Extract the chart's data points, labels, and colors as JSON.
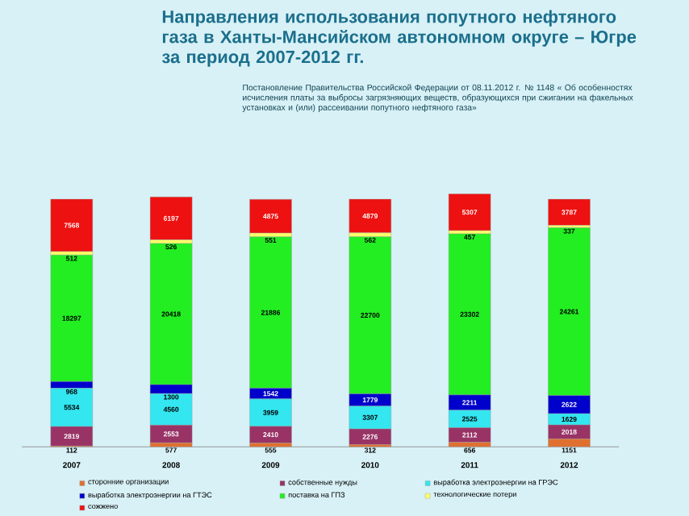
{
  "chart_data": {
    "type": "bar",
    "stacked": true,
    "data_labels": true,
    "legend": "bottom",
    "title": "Направления использования попутного нефтяного газа в Ханты-Мансийском автономном округе – Югре за период 2007-2012 гг.",
    "subtitle": "Постановление Правительства Российской Федерации от 08.11.2012 г. № 1148 « Об особенностях исчисления платы за выбросы загрязняющих веществ, образующихся при сжигании на факельных установках и (или) рассеивании попутного нефтяного газа»",
    "categories": [
      "2007",
      "2008",
      "2009",
      "2010",
      "2011",
      "2012"
    ],
    "series": [
      {
        "name": "сторонние организации",
        "color": "#e07030",
        "values": [
          112,
          577,
          555,
          312,
          656,
          1151
        ]
      },
      {
        "name": "собственные нужды",
        "color": "#993366",
        "values": [
          2819,
          2553,
          2410,
          2276,
          2112,
          2018
        ]
      },
      {
        "name": "выработка электроэнергии на ГРЭС",
        "color": "#33e6f0",
        "values": [
          5534,
          4560,
          3959,
          3307,
          2525,
          1629
        ]
      },
      {
        "name": "выработка электроэнергии на ГТЭС",
        "color": "#0000cc",
        "values": [
          968,
          1300,
          1542,
          1779,
          2211,
          2622
        ]
      },
      {
        "name": "поставка на ГПЗ",
        "color": "#22ee22",
        "values": [
          18297,
          20418,
          21886,
          22700,
          23302,
          24261
        ]
      },
      {
        "name": "технологические потери",
        "color": "#ffff66",
        "values": [
          512,
          526,
          551,
          562,
          457,
          337
        ]
      },
      {
        "name": "сожжено",
        "color": "#ee1111",
        "values": [
          7568,
          6197,
          4875,
          4879,
          5307,
          3787
        ]
      }
    ]
  }
}
